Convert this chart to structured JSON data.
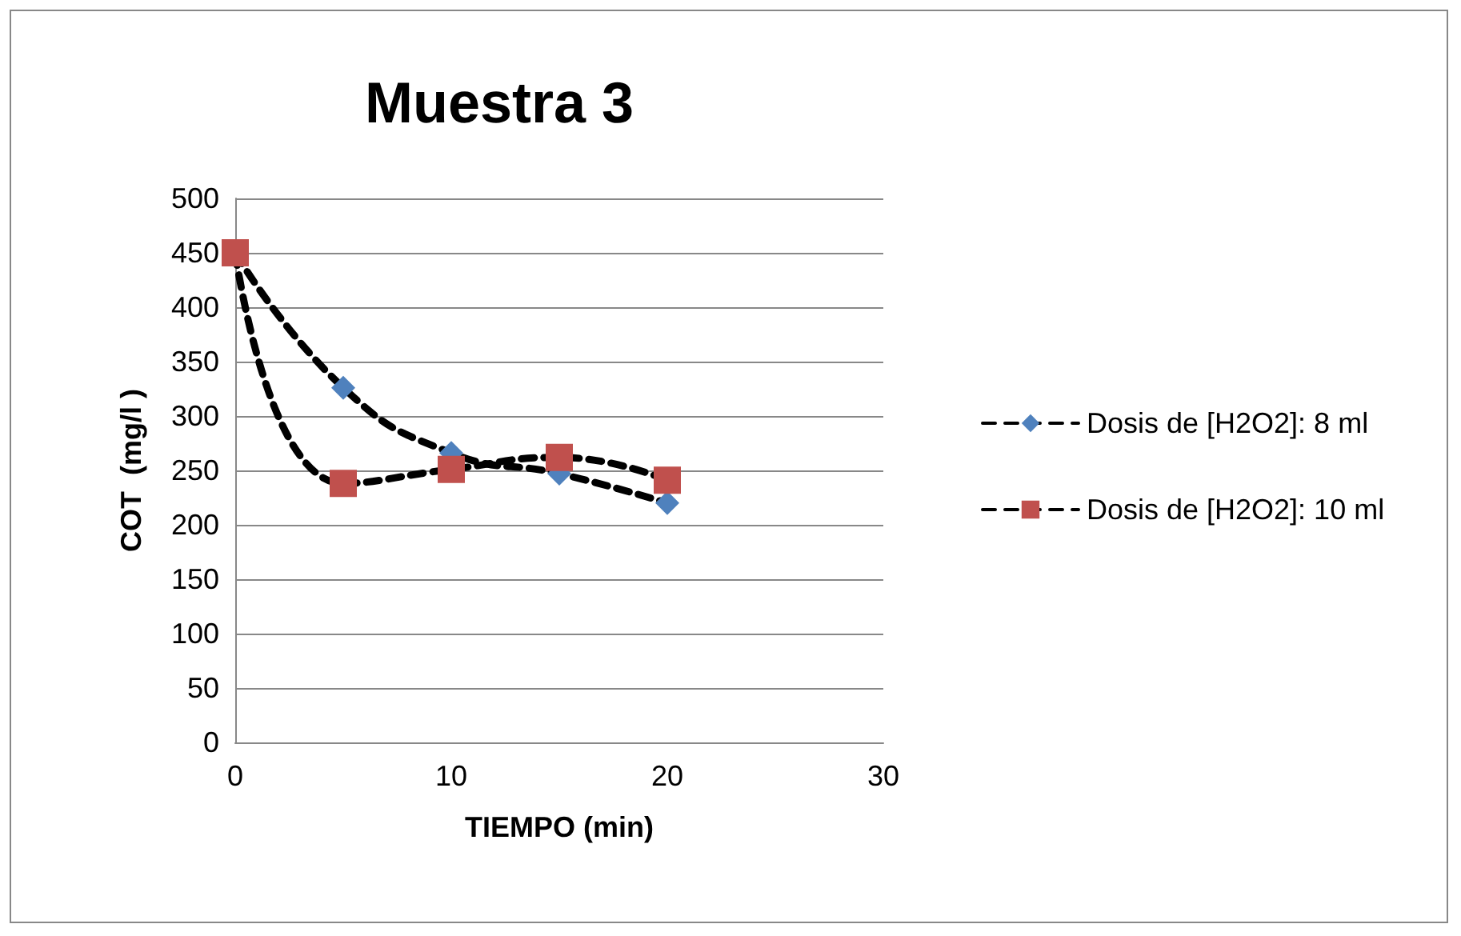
{
  "chart_data": {
    "type": "line",
    "title": "Muestra 3",
    "xlabel": "TIEMPO (min)",
    "ylabel": "COT  (mg/l )",
    "x": [
      0,
      5,
      10,
      15,
      20
    ],
    "series": [
      {
        "name": "Dosis de [H2O2]: 8 ml",
        "color": "#4f81bd",
        "marker": "diamond",
        "values": [
          450,
          326,
          266,
          247,
          220
        ]
      },
      {
        "name": "Dosis de [H2O2]: 10 ml",
        "color": "#c0504d",
        "marker": "square",
        "values": [
          450,
          238,
          251,
          262,
          241
        ]
      }
    ],
    "xlim": [
      0,
      30
    ],
    "xticks": [
      0,
      10,
      20,
      30
    ],
    "ylim": [
      0,
      500
    ],
    "yticks": [
      0,
      50,
      100,
      150,
      200,
      250,
      300,
      350,
      400,
      450,
      500
    ],
    "grid": "y",
    "legend": "right",
    "line_style": "dashed"
  }
}
